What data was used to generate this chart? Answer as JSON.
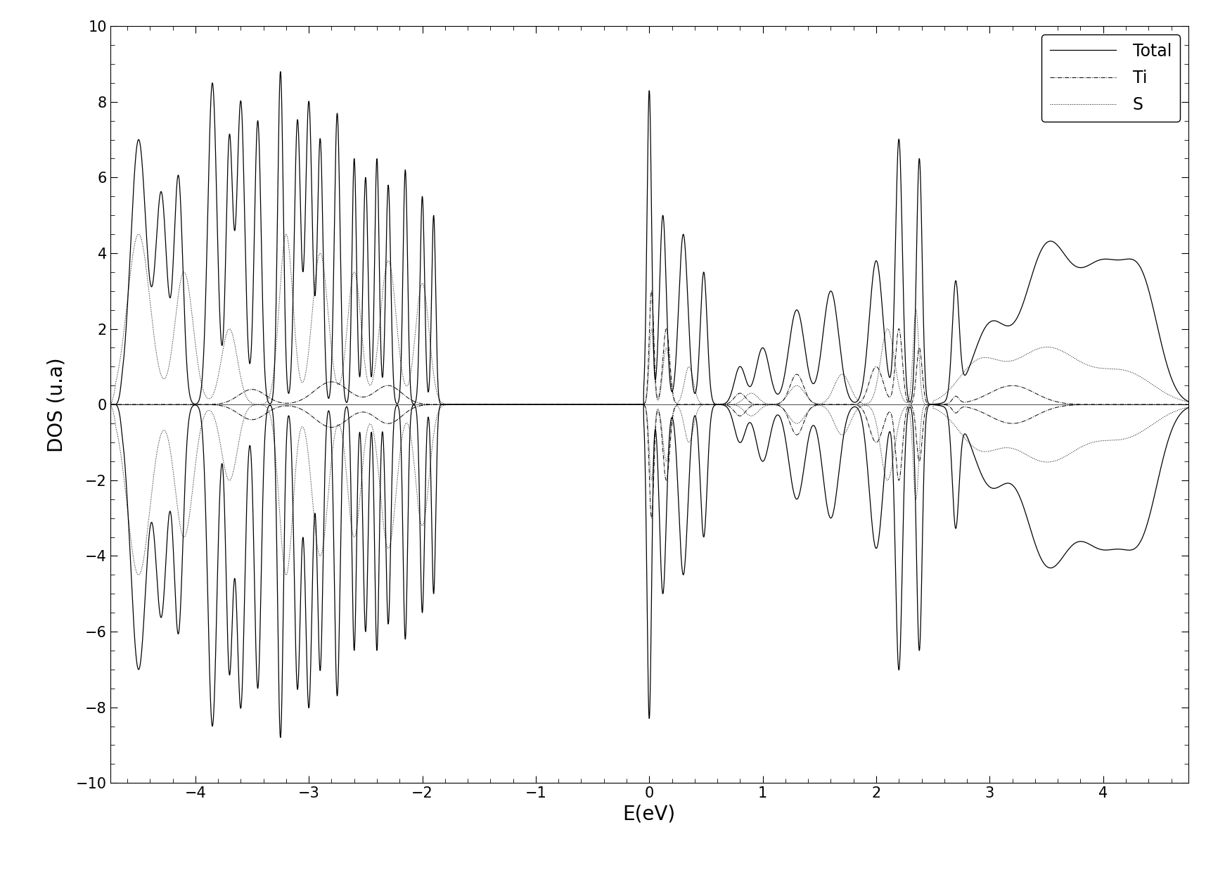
{
  "title": "",
  "xlabel": "E(eV)",
  "ylabel": "DOS (u.a)",
  "xlim": [
    -4.75,
    4.75
  ],
  "ylim": [
    -10,
    10
  ],
  "xticks": [
    -4,
    -3,
    -2,
    -1,
    0,
    1,
    2,
    3,
    4
  ],
  "yticks": [
    -10,
    -8,
    -6,
    -4,
    -2,
    0,
    2,
    4,
    6,
    8,
    10
  ],
  "legend_labels": [
    "Total",
    "Ti",
    "S"
  ],
  "background_color": "white"
}
